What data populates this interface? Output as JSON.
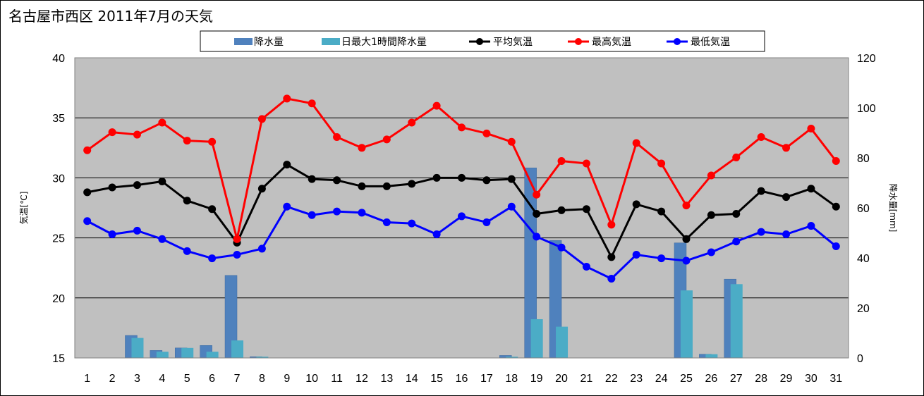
{
  "chart_data": {
    "type": "bar+line",
    "title": "名古屋市西区  2011年7月の天気",
    "categories": [
      "1",
      "2",
      "3",
      "4",
      "5",
      "6",
      "7",
      "8",
      "9",
      "10",
      "11",
      "12",
      "13",
      "14",
      "15",
      "16",
      "17",
      "18",
      "19",
      "20",
      "21",
      "22",
      "23",
      "24",
      "25",
      "26",
      "27",
      "28",
      "29",
      "30",
      "31"
    ],
    "y_left": {
      "label": "気温[℃]",
      "min": 15,
      "max": 40,
      "ticks": [
        15,
        20,
        25,
        30,
        35,
        40
      ]
    },
    "y_right": {
      "label": "降水量[mm]",
      "min": 0,
      "max": 120,
      "ticks": [
        0,
        20,
        40,
        60,
        80,
        100,
        120
      ]
    },
    "grid": true,
    "legend_position": "top-center",
    "legend": [
      "降水量",
      "日最大1時間降水量",
      "平均気温",
      "最高気温",
      "最低気温"
    ],
    "bar_series": [
      {
        "name": "降水量",
        "axis": "right",
        "color": "#4f81bd",
        "values": [
          0,
          0,
          9,
          3,
          4,
          5,
          33,
          0.5,
          0,
          0,
          0,
          0,
          0,
          0,
          0,
          0,
          0,
          1,
          76,
          47,
          0,
          0,
          0,
          0,
          46,
          1.5,
          31.5,
          0,
          0,
          0,
          0
        ]
      },
      {
        "name": "日最大1時間降水量",
        "axis": "right",
        "color": "#4bacc6",
        "values": [
          0,
          0,
          8,
          2.5,
          4,
          2.5,
          7,
          0.5,
          0,
          0,
          0,
          0,
          0,
          0,
          0,
          0,
          0,
          0.5,
          15.5,
          12.5,
          0,
          0,
          0,
          0,
          27,
          1.5,
          29.5,
          0,
          0,
          0,
          0
        ]
      }
    ],
    "line_series": [
      {
        "name": "平均気温",
        "axis": "left",
        "color": "#000000",
        "values": [
          28.8,
          29.2,
          29.4,
          29.7,
          28.1,
          27.4,
          24.6,
          29.1,
          31.1,
          29.9,
          29.8,
          29.3,
          29.3,
          29.5,
          30.0,
          30.0,
          29.8,
          29.9,
          27.0,
          27.3,
          27.4,
          23.4,
          27.8,
          27.2,
          24.9,
          26.9,
          27.0,
          28.9,
          28.4,
          29.1,
          27.6
        ]
      },
      {
        "name": "最高気温",
        "axis": "left",
        "color": "#ff0000",
        "values": [
          32.3,
          33.8,
          33.6,
          34.6,
          33.1,
          33.0,
          24.9,
          34.9,
          36.6,
          36.2,
          33.4,
          32.5,
          33.2,
          34.6,
          36.0,
          34.2,
          33.7,
          33.0,
          28.6,
          31.4,
          31.2,
          26.1,
          32.9,
          31.2,
          27.7,
          30.2,
          31.7,
          33.4,
          32.5,
          34.1,
          31.4
        ]
      },
      {
        "name": "最低気温",
        "axis": "left",
        "color": "#0000ff",
        "values": [
          26.4,
          25.3,
          25.6,
          24.9,
          23.9,
          23.3,
          23.6,
          24.1,
          27.6,
          26.9,
          27.2,
          27.1,
          26.3,
          26.2,
          25.3,
          26.8,
          26.3,
          27.6,
          25.1,
          24.2,
          22.6,
          21.6,
          23.6,
          23.3,
          23.1,
          23.8,
          24.7,
          25.5,
          25.3,
          26.0,
          24.3
        ]
      }
    ]
  }
}
